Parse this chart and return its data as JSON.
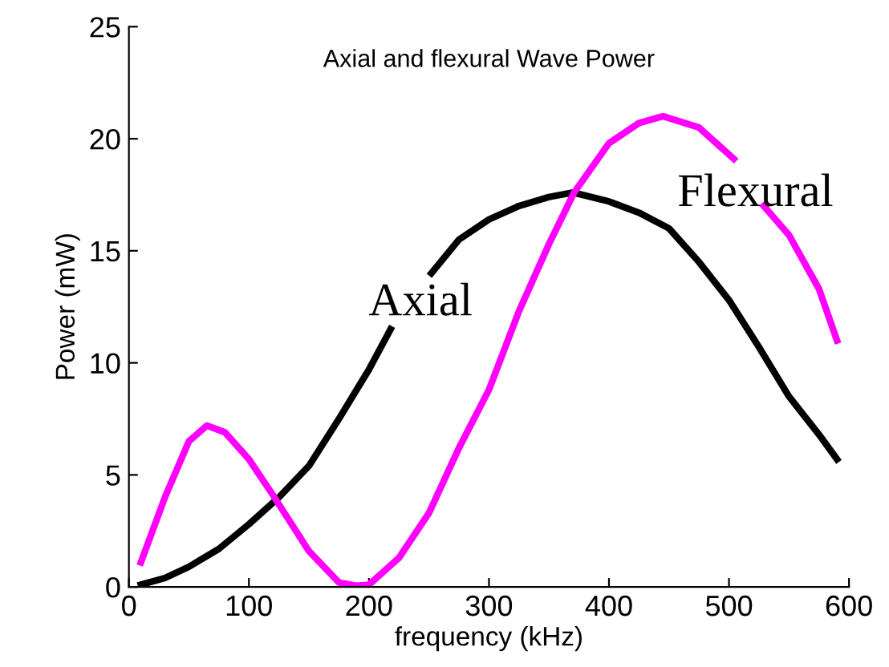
{
  "chart_data": {
    "type": "line",
    "title": "Axial and flexural Wave Power",
    "xlabel": "frequency (kHz)",
    "ylabel": "Power (mW)",
    "xlim": [
      0,
      600
    ],
    "ylim": [
      0,
      25
    ],
    "xticks": [
      0,
      100,
      200,
      300,
      400,
      500,
      600
    ],
    "yticks": [
      0,
      5,
      10,
      15,
      20,
      25
    ],
    "grid": false,
    "legend": false,
    "line_style": "solid",
    "marker": "none",
    "annotations": [
      "Axial",
      "Flexural"
    ],
    "series": [
      {
        "color": "#000000",
        "x": [
          10,
          30,
          50,
          75,
          100,
          125,
          150,
          175,
          200,
          218,
          235,
          252,
          275,
          300,
          325,
          350,
          370,
          400,
          425,
          450,
          475,
          500,
          525,
          550,
          575,
          590
        ],
        "values": [
          0.1,
          0.4,
          0.9,
          1.7,
          2.8,
          4.0,
          5.4,
          7.5,
          9.7,
          11.5,
          null,
          14.0,
          15.5,
          16.4,
          17.0,
          17.4,
          17.6,
          17.2,
          16.7,
          16.0,
          14.5,
          12.8,
          10.7,
          8.5,
          6.8,
          5.7
        ]
      },
      {
        "color": "#ff00ff",
        "x": [
          10,
          30,
          50,
          65,
          80,
          100,
          120,
          150,
          175,
          190,
          200,
          225,
          250,
          275,
          300,
          325,
          350,
          371,
          400,
          425,
          445,
          475,
          504,
          516,
          529,
          550,
          575,
          590
        ],
        "values": [
          1.1,
          4.0,
          6.5,
          7.2,
          6.9,
          5.7,
          4.1,
          1.6,
          0.2,
          0.05,
          0.1,
          1.3,
          3.3,
          6.2,
          8.8,
          12.3,
          15.3,
          17.6,
          19.8,
          20.7,
          21.0,
          20.5,
          19.1,
          null,
          17.0,
          15.7,
          13.3,
          11.0
        ]
      }
    ]
  }
}
